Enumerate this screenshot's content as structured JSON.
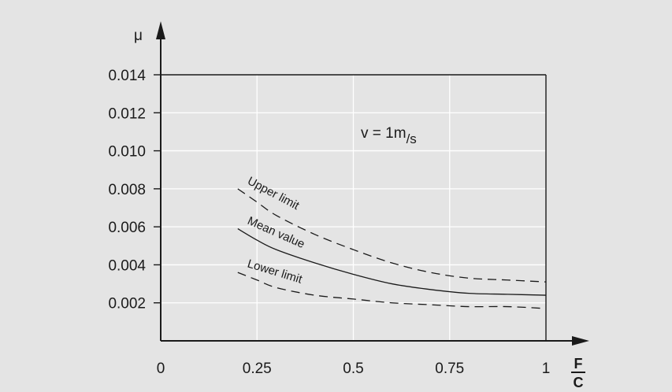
{
  "chart_data": {
    "type": "line",
    "xlabel": {
      "numerator": "F",
      "denominator": "C"
    },
    "ylabel": "μ",
    "xlim": [
      0,
      1
    ],
    "ylim": [
      0,
      0.014
    ],
    "x_ticks": [
      "0",
      "0.25",
      "0.5",
      "0.75",
      "1"
    ],
    "y_ticks": [
      "0.002",
      "0.004",
      "0.006",
      "0.008",
      "0.010",
      "0.012",
      "0.014"
    ],
    "grid": true,
    "annotation": {
      "main": "v = 1m",
      "sub": "/s"
    },
    "series": [
      {
        "name": "Upper limit",
        "style": "dashed",
        "x": [
          0.2,
          0.25,
          0.3,
          0.4,
          0.5,
          0.6,
          0.7,
          0.8,
          0.9,
          1.0
        ],
        "y": [
          0.008,
          0.0073,
          0.0066,
          0.0056,
          0.0048,
          0.0041,
          0.0036,
          0.0033,
          0.0032,
          0.0031
        ]
      },
      {
        "name": "Mean value",
        "style": "solid",
        "x": [
          0.2,
          0.25,
          0.3,
          0.4,
          0.5,
          0.6,
          0.7,
          0.8,
          0.9,
          1.0
        ],
        "y": [
          0.0059,
          0.0053,
          0.0048,
          0.0041,
          0.0035,
          0.003,
          0.0027,
          0.0025,
          0.00245,
          0.0024
        ]
      },
      {
        "name": "Lower limit",
        "style": "dashed",
        "x": [
          0.2,
          0.25,
          0.3,
          0.4,
          0.5,
          0.6,
          0.7,
          0.8,
          0.9,
          1.0
        ],
        "y": [
          0.0036,
          0.0032,
          0.0028,
          0.0024,
          0.0022,
          0.002,
          0.0019,
          0.0018,
          0.0018,
          0.0017
        ]
      }
    ]
  }
}
